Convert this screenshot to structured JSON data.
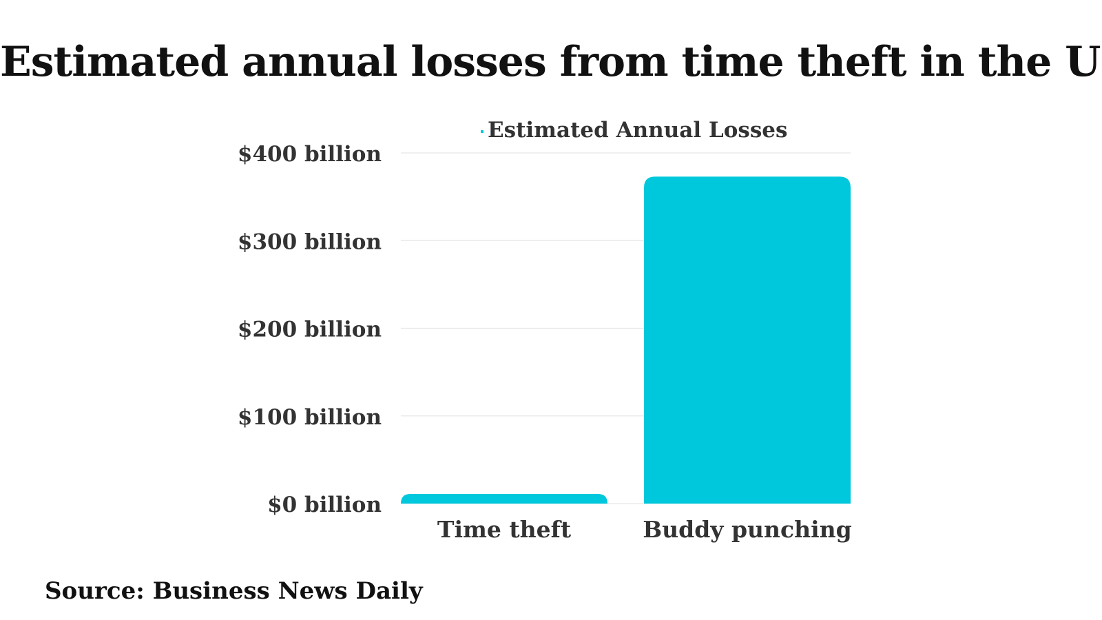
{
  "title": "Estimated annual losses from time theft in the US",
  "source": "Source: Business News Daily",
  "colors": {
    "bar": "#00C8DC",
    "gridline": "#E6E6E6",
    "text": "#111111",
    "axis_text": "#333333"
  },
  "chart_data": {
    "type": "bar",
    "title": "Estimated annual losses from time theft in the US",
    "xlabel": "",
    "ylabel": "",
    "categories": [
      "Time theft",
      "Buddy punching"
    ],
    "series": [
      {
        "name": "Estimated Annual Losses",
        "values": [
          11,
          373
        ]
      }
    ],
    "ylim": [
      0,
      400
    ],
    "yticks": [
      0,
      100,
      200,
      300,
      400
    ],
    "ytick_labels": [
      "$0 billion",
      "$100 billion",
      "$200 billion",
      "$300 billion",
      "$400 billion"
    ],
    "grid": true,
    "legend_position": "top-center"
  }
}
